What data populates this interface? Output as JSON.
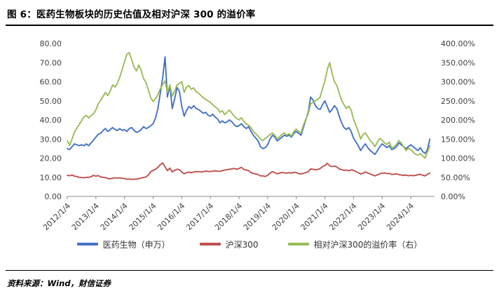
{
  "title": "图 6：医药生物板块的历史估值及相对沪深 300 的溢价率",
  "source": "资料来源：Wind，财信证券",
  "chart_data": {
    "type": "line",
    "title": "医药生物板块的历史估值及相对沪深300的溢价率",
    "x_tick_labels": [
      "2012/1/4",
      "2013/1/4",
      "2014/1/4",
      "2015/1/4",
      "2016/1/4",
      "2017/1/4",
      "2018/1/4",
      "2019/1/4",
      "2020/1/4",
      "2021/1/4",
      "2022/1/4",
      "2023/1/4",
      "2024/1/4"
    ],
    "x_frequency": "monthly",
    "x_start": "2012-01",
    "left_axis": {
      "min": 0,
      "max": 80,
      "tick_labels": [
        "0.00",
        "10.00",
        "20.00",
        "30.00",
        "40.00",
        "50.00",
        "60.00",
        "70.00",
        "80.00"
      ]
    },
    "right_axis": {
      "min": 0,
      "max": 400,
      "tick_labels": [
        "0.00%",
        "50.00%",
        "100.00%",
        "150.00%",
        "200.00%",
        "250.00%",
        "300.00%",
        "350.00%",
        "400.00%"
      ]
    },
    "grid": false,
    "legend_position": "bottom",
    "series": [
      {
        "name": "医药生物（申万）",
        "color": "#4472C4",
        "axis": "left",
        "values": [
          25,
          24.5,
          26,
          27.5,
          27,
          26.5,
          27,
          26.5,
          27.5,
          26.5,
          28,
          29.5,
          31,
          32.5,
          33,
          34.5,
          35.5,
          34,
          35,
          36,
          35,
          34.5,
          35.5,
          34.5,
          35,
          34,
          35.5,
          36,
          34.5,
          33.5,
          34,
          35,
          36.5,
          35.5,
          36,
          37,
          38,
          41,
          46,
          54,
          62,
          73,
          52,
          58,
          46,
          51,
          57,
          55,
          47,
          42,
          45,
          47,
          46,
          47.5,
          46,
          45.5,
          44.5,
          43.5,
          44,
          42.5,
          42,
          43,
          41.5,
          40.5,
          38.5,
          39.5,
          38.5,
          39,
          40,
          39,
          37.5,
          36.5,
          37,
          38,
          36.5,
          35.5,
          36.5,
          34,
          32,
          30.5,
          29,
          26,
          25,
          25.5,
          27,
          30,
          32,
          31,
          29,
          30,
          31,
          32,
          31.5,
          32,
          31,
          33,
          34,
          33,
          32,
          36,
          40,
          44,
          52,
          50.5,
          47.5,
          46,
          45.5,
          48,
          50,
          47,
          44,
          45.5,
          47.5,
          46,
          42,
          38.5,
          36,
          35,
          36,
          34,
          30.5,
          28.5,
          26.5,
          24,
          26,
          27.5,
          25.5,
          24,
          23,
          22,
          24,
          26,
          27.5,
          26.5,
          25.5,
          26.5,
          24.5,
          25,
          26,
          28,
          27,
          26,
          25,
          26,
          27,
          26,
          25,
          24,
          25.5,
          23.5,
          22.5,
          24.5,
          30
        ]
      },
      {
        "name": "沪深300",
        "color": "#C0504D",
        "axis": "left",
        "values": [
          11,
          10.8,
          11.2,
          10.6,
          10.4,
          10,
          9.9,
          9.7,
          10,
          10,
          10.3,
          11,
          10.6,
          10.9,
          10.2,
          10,
          9.8,
          9.4,
          9.2,
          9.5,
          9.7,
          9.6,
          9.7,
          9.5,
          9.3,
          9,
          9.1,
          8.9,
          9,
          9.1,
          9.3,
          9.6,
          9.9,
          10.2,
          11.2,
          13,
          13.6,
          14.2,
          15.2,
          16.6,
          17.5,
          15.5,
          13.5,
          14.8,
          12.8,
          13.6,
          14.2,
          14,
          12.8,
          11.8,
          12.4,
          12.7,
          12.4,
          12.8,
          13,
          12.9,
          12.8,
          12.9,
          13.3,
          13,
          13,
          13.2,
          13.4,
          13.2,
          13.1,
          13.5,
          13.8,
          14,
          14.2,
          14.4,
          14.6,
          14.2,
          14.6,
          15.2,
          14.1,
          13.8,
          13.5,
          12.4,
          12,
          11.7,
          11.4,
          10.7,
          10.8,
          10.4,
          11,
          12.2,
          12.9,
          12.5,
          11.8,
          12.2,
          12.5,
          12.3,
          12.2,
          12.4,
          12.2,
          12.6,
          12.5,
          11.9,
          11.7,
          12.1,
          12.4,
          13,
          14.4,
          14.2,
          13.9,
          14.1,
          14.6,
          15.6,
          16.2,
          17.3,
          16,
          15.6,
          15.9,
          15.4,
          14.4,
          14,
          13.6,
          13.8,
          13.4,
          13.9,
          13.6,
          13,
          12.4,
          11.7,
          12.1,
          12.8,
          12.2,
          11.8,
          11.2,
          10.7,
          11.3,
          11.9,
          12.1,
          12.3,
          11.9,
          12,
          11.5,
          11.6,
          11.8,
          11.4,
          11.2,
          11,
          11.2,
          10.8,
          11,
          10.8,
          11.1,
          11.3,
          11.6,
          11.1,
          10.7,
          11.6,
          12.2
        ]
      },
      {
        "name": "相对沪深300的溢价率（右）",
        "color": "#9BBB59",
        "axis": "right",
        "values": [
          145,
          134,
          150,
          168,
          178,
          188,
          198,
          208,
          212,
          205,
          212,
          216,
          226,
          242,
          252,
          262,
          272,
          264,
          276,
          292,
          286,
          296,
          312,
          332,
          352,
          372,
          376,
          358,
          338,
          328,
          344,
          328,
          308,
          298,
          278,
          258,
          248,
          256,
          266,
          282,
          292,
          302,
          272,
          292,
          262,
          276,
          292,
          296,
          300,
          272,
          286,
          290,
          280,
          284,
          274,
          270,
          264,
          258,
          254,
          250,
          246,
          240,
          234,
          230,
          220,
          224,
          214,
          220,
          226,
          218,
          210,
          204,
          200,
          206,
          196,
          190,
          186,
          180,
          170,
          164,
          158,
          150,
          146,
          152,
          156,
          162,
          166,
          160,
          150,
          156,
          162,
          166,
          160,
          164,
          158,
          170,
          176,
          170,
          166,
          186,
          202,
          216,
          242,
          246,
          250,
          254,
          260,
          282,
          302,
          332,
          350,
          322,
          300,
          290,
          270,
          252,
          240,
          230,
          236,
          226,
          202,
          186,
          170,
          150,
          162,
          166,
          156,
          146,
          140,
          130,
          142,
          152,
          146,
          140,
          136,
          142,
          126,
          130,
          136,
          146,
          140,
          130,
          120,
          126,
          122,
          116,
          110,
          108,
          112,
          106,
          100,
          116,
          132
        ]
      }
    ]
  }
}
